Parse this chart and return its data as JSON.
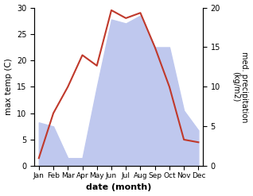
{
  "months": [
    "Jan",
    "Feb",
    "Mar",
    "Apr",
    "May",
    "Jun",
    "Jul",
    "Aug",
    "Sep",
    "Oct",
    "Nov",
    "Dec"
  ],
  "month_positions": [
    0,
    1,
    2,
    3,
    4,
    5,
    6,
    7,
    8,
    9,
    10,
    11
  ],
  "temperature": [
    1.5,
    10,
    15,
    21.0,
    19.0,
    29.5,
    28.0,
    29.0,
    22.5,
    15.0,
    5.0,
    4.5
  ],
  "precipitation": [
    5.5,
    5.0,
    1.0,
    1.0,
    10.0,
    18.5,
    18.0,
    19.0,
    15.0,
    15.0,
    7.0,
    4.5
  ],
  "temp_color": "#c0392b",
  "precip_fill_color": "#bfc8ee",
  "temp_ylim": [
    0,
    30
  ],
  "precip_ylim": [
    0,
    20
  ],
  "temp_yticks": [
    0,
    5,
    10,
    15,
    20,
    25,
    30
  ],
  "precip_yticks": [
    0,
    5,
    10,
    15,
    20
  ],
  "xlabel": "date (month)",
  "ylabel_left": "max temp (C)",
  "ylabel_right": "med. precipitation\n(kg/m2)",
  "background_color": "#ffffff",
  "linewidth": 1.5
}
